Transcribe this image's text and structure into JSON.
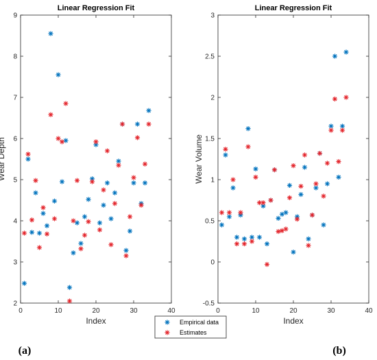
{
  "chart_data": [
    {
      "type": "scatter",
      "title": "Linear Regression Fit",
      "xlabel": "Index",
      "ylabel": "Wear Depth",
      "xlim": [
        0,
        40
      ],
      "ylim": [
        2,
        9
      ],
      "xticks": [
        "0",
        "10",
        "20",
        "30",
        "40"
      ],
      "yticks": [
        "2",
        "3",
        "4",
        "5",
        "6",
        "7",
        "8",
        "9"
      ],
      "series": [
        {
          "name": "Empirical data",
          "color": "#0072BD",
          "x": [
            1,
            2,
            3,
            4,
            5,
            6,
            7,
            8,
            9,
            10,
            11,
            12,
            13,
            14,
            15,
            16,
            17,
            18,
            19,
            20,
            21,
            22,
            23,
            24,
            25,
            26,
            27,
            28,
            29,
            30,
            31,
            32,
            33,
            34
          ],
          "y": [
            2.48,
            5.5,
            3.72,
            4.68,
            3.7,
            4.18,
            3.88,
            8.55,
            4.48,
            7.55,
            4.95,
            5.95,
            2.38,
            3.22,
            3.95,
            3.45,
            4.1,
            4.52,
            5.02,
            5.85,
            3.95,
            4.38,
            4.92,
            4.05,
            4.68,
            5.45,
            6.35,
            3.28,
            3.75,
            4.92,
            6.35,
            4.42,
            4.92,
            6.68
          ]
        },
        {
          "name": "Estimates",
          "color": "#E3242B",
          "x": [
            1,
            2,
            3,
            4,
            5,
            6,
            7,
            8,
            9,
            10,
            11,
            12,
            13,
            14,
            15,
            16,
            17,
            18,
            19,
            20,
            21,
            22,
            23,
            24,
            25,
            26,
            27,
            28,
            29,
            30,
            31,
            32,
            33,
            34
          ],
          "y": [
            3.7,
            5.62,
            4.02,
            4.98,
            3.35,
            4.32,
            3.68,
            6.58,
            4.05,
            6.0,
            5.92,
            6.85,
            2.05,
            4.0,
            4.98,
            3.32,
            3.65,
            3.98,
            4.95,
            5.92,
            3.78,
            4.75,
            5.7,
            3.42,
            4.42,
            5.35,
            6.35,
            3.15,
            4.1,
            5.05,
            6.02,
            4.38,
            5.38,
            6.35
          ]
        }
      ]
    },
    {
      "type": "scatter",
      "title": "Linear Regression Fit",
      "xlabel": "Index",
      "ylabel": "Wear Volume",
      "xlim": [
        0,
        40
      ],
      "ylim": [
        -0.5,
        3
      ],
      "xticks": [
        "0",
        "10",
        "20",
        "30",
        "40"
      ],
      "yticks": [
        "-0.5",
        "0",
        "0.5",
        "1",
        "1.5",
        "2",
        "2.5",
        "3"
      ],
      "series": [
        {
          "name": "Empirical data",
          "color": "#0072BD",
          "x": [
            1,
            2,
            3,
            4,
            5,
            6,
            7,
            8,
            9,
            10,
            11,
            12,
            13,
            14,
            15,
            16,
            17,
            18,
            19,
            20,
            21,
            22,
            23,
            24,
            25,
            26,
            27,
            28,
            29,
            30,
            31,
            32,
            33,
            34
          ],
          "y": [
            0.45,
            1.3,
            0.55,
            0.9,
            0.3,
            0.57,
            0.28,
            1.62,
            0.3,
            1.13,
            0.3,
            0.68,
            0.22,
            0.75,
            1.12,
            0.53,
            0.58,
            0.6,
            0.93,
            0.12,
            0.55,
            0.82,
            1.15,
            0.28,
            0.57,
            0.9,
            1.32,
            0.45,
            0.95,
            1.65,
            2.5,
            1.03,
            1.65,
            2.55
          ]
        },
        {
          "name": "Estimates",
          "color": "#E3242B",
          "x": [
            1,
            2,
            3,
            4,
            5,
            6,
            7,
            8,
            9,
            10,
            11,
            12,
            13,
            14,
            15,
            16,
            17,
            18,
            19,
            20,
            21,
            22,
            23,
            24,
            25,
            26,
            27,
            28,
            29,
            30,
            31,
            32,
            33,
            34
          ],
          "y": [
            0.6,
            1.37,
            0.6,
            1.0,
            0.22,
            0.6,
            0.22,
            1.4,
            0.25,
            1.03,
            0.72,
            0.72,
            -0.03,
            0.75,
            1.12,
            0.37,
            0.38,
            0.4,
            0.78,
            1.17,
            0.52,
            0.92,
            1.3,
            0.2,
            0.57,
            0.95,
            1.32,
            0.8,
            1.2,
            1.6,
            1.98,
            1.22,
            1.6,
            2.0
          ]
        }
      ]
    }
  ],
  "legend": {
    "items": [
      {
        "label": "Empirical data",
        "color": "#0072BD"
      },
      {
        "label": "Estimates",
        "color": "#E3242B"
      }
    ]
  },
  "panel_labels": [
    "(a)",
    "(b)"
  ]
}
